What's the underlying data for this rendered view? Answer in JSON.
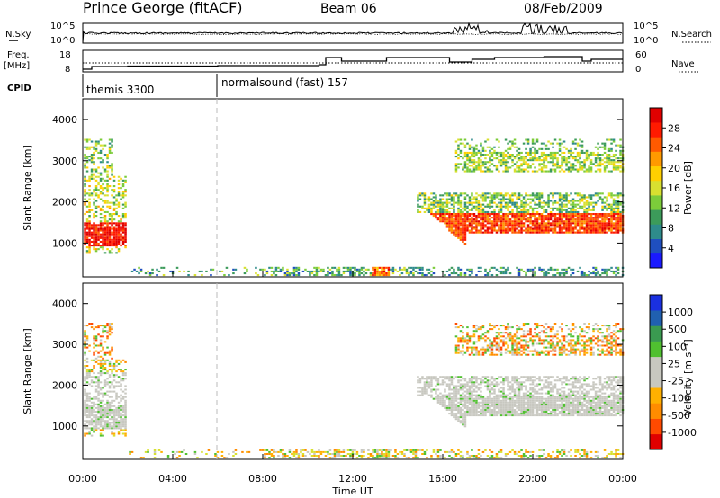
{
  "header": {
    "station": "Prince George (fitACF)",
    "beam": "Beam 06",
    "date": "08/Feb/2009"
  },
  "labels": {
    "nsky": "N.Sky",
    "nsearch": "N.Search",
    "freq_line1": "Freq.",
    "freq_line2": "[MHz]",
    "nave": "Nave",
    "cpid": "CPID",
    "time_axis": "Time UT",
    "slant_range": "Slant Range [km]",
    "power_label": "Power [dB]",
    "velocity_label": "Velocity [m s⁻¹]"
  },
  "noise_axis": {
    "top": "10^5",
    "bottom": "10^0"
  },
  "freq_axis": {
    "left_ticks": [
      "18",
      "8"
    ],
    "right_ticks": [
      "60",
      "0"
    ]
  },
  "cpid_segments": [
    {
      "label": "themis 3300",
      "start_hour": 0
    },
    {
      "label": "normalsound (fast) 157",
      "start_hour": 6
    }
  ],
  "chart_data": [
    {
      "type": "heatmap",
      "name": "power",
      "x_range_hours": [
        0,
        24
      ],
      "ylim": [
        180,
        4500
      ],
      "y_ticks": [
        "1000",
        "2000",
        "3000",
        "4000"
      ],
      "x_ticks": [
        "00:00",
        "04:00",
        "08:00",
        "12:00",
        "16:00",
        "20:00",
        "00:00"
      ],
      "colorbar": {
        "ticks": [
          "4",
          "8",
          "12",
          "16",
          "20",
          "24",
          "28"
        ],
        "colors": [
          "#1a1aff",
          "#1f4fbf",
          "#2e8b8b",
          "#3c9b5a",
          "#7ccc3a",
          "#d8e030",
          "#ffd000",
          "#ff9a00",
          "#ff5a00",
          "#ff1a00",
          "#e00000"
        ]
      }
    },
    {
      "type": "heatmap",
      "name": "velocity",
      "x_range_hours": [
        0,
        24
      ],
      "ylim": [
        180,
        4500
      ],
      "y_ticks": [
        "1000",
        "2000",
        "3000",
        "4000"
      ],
      "x_ticks": [
        "00:00",
        "04:00",
        "08:00",
        "12:00",
        "16:00",
        "20:00",
        "00:00"
      ],
      "colorbar": {
        "ticks": [
          "-1000",
          "-500",
          "-100",
          "-25",
          "25",
          "100",
          "500",
          "1000"
        ],
        "colors": [
          "#e00000",
          "#ff4a00",
          "#ff8c00",
          "#ffb000",
          "#c8c8c0",
          "#c8c8c0",
          "#50c030",
          "#3a9a50",
          "#2060b0",
          "#1a30e0"
        ]
      }
    }
  ]
}
